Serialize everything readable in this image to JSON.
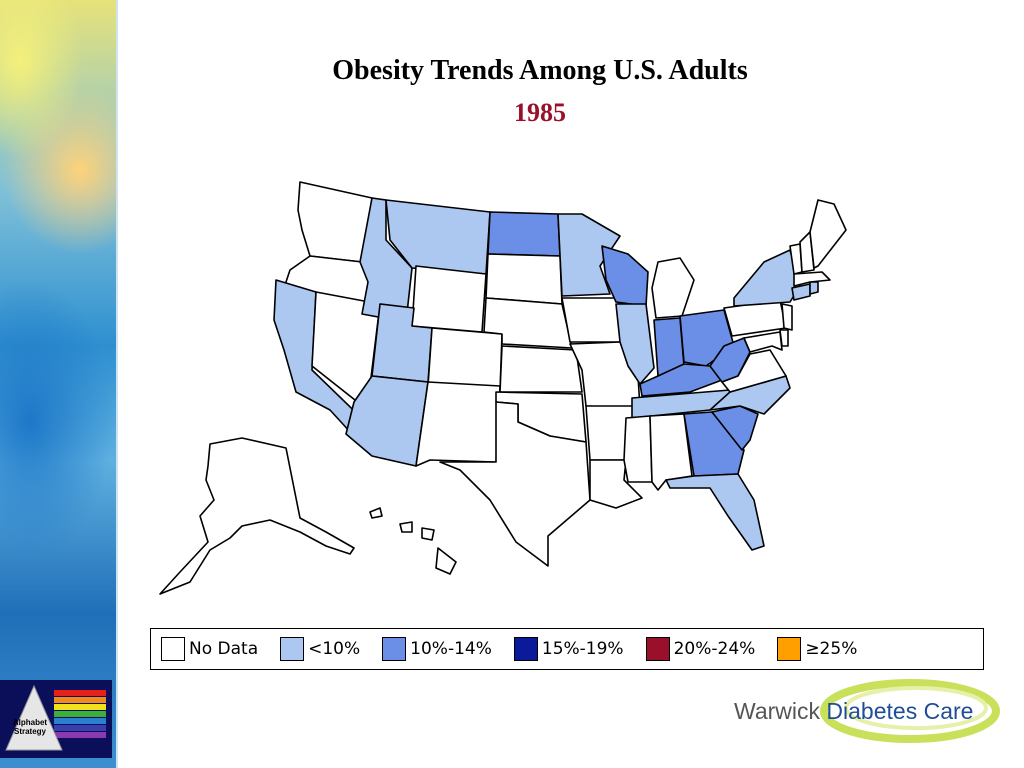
{
  "slide": {
    "title": "Obesity Trends Among U.S. Adults",
    "year": "1985"
  },
  "colors": {
    "no_data": "#ffffff",
    "lt10": "#acc8f0",
    "p10_14": "#6b8fe6",
    "p15_19": "#0a1a9a",
    "p20_24": "#9a0f2a",
    "ge25": "#ff9f00"
  },
  "legend": [
    {
      "label": "No Data",
      "color": "#ffffff"
    },
    {
      "label": "<10%",
      "color": "#acc8f0"
    },
    {
      "label": "10%-14%",
      "color": "#6b8fe6"
    },
    {
      "label": "15%-19%",
      "color": "#0a1a9a"
    },
    {
      "label": "20%-24%",
      "color": "#9a0f2a"
    },
    {
      "label": "≥25%",
      "color": "#ff9f00"
    }
  ],
  "state_categories": {
    "WA": "No Data",
    "OR": "No Data",
    "CA": "<10%",
    "NV": "No Data",
    "ID": "<10%",
    "MT": "<10%",
    "WY": "No Data",
    "UT": "<10%",
    "AZ": "<10%",
    "CO": "No Data",
    "NM": "No Data",
    "ND": "10%-14%",
    "SD": "No Data",
    "NE": "No Data",
    "KS": "No Data",
    "OK": "No Data",
    "TX": "No Data",
    "MN": "<10%",
    "IA": "No Data",
    "MO": "No Data",
    "AR": "No Data",
    "LA": "No Data",
    "WI": "10%-14%",
    "IL": "<10%",
    "MI": "No Data",
    "IN": "10%-14%",
    "OH": "10%-14%",
    "KY": "10%-14%",
    "TN": "<10%",
    "MS": "No Data",
    "AL": "No Data",
    "GA": "10%-14%",
    "FL": "<10%",
    "SC": "10%-14%",
    "NC": "<10%",
    "VA": "No Data",
    "WV": "10%-14%",
    "MD": "No Data",
    "DE": "No Data",
    "PA": "No Data",
    "NJ": "No Data",
    "NY": "<10%",
    "CT": "<10%",
    "RI": "<10%",
    "MA": "No Data",
    "VT": "No Data",
    "NH": "No Data",
    "ME": "No Data",
    "AK": "No Data",
    "HI": "No Data"
  },
  "footer": {
    "logo_text": "Alphabet Strategy",
    "brand_prefix": "Warwick",
    "brand_name": "Diabetes Care"
  }
}
